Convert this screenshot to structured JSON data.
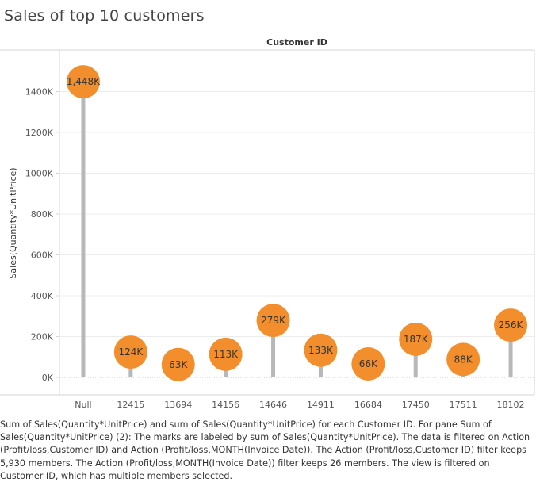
{
  "title": "Sales of top 10 customers",
  "chart_data": {
    "type": "lollipop",
    "column_header": "Customer ID",
    "ylabel": "Sales(Quantity*UnitPrice)",
    "categories": [
      "Null",
      "12415",
      "13694",
      "14156",
      "14646",
      "14911",
      "16684",
      "17450",
      "17511",
      "18102"
    ],
    "values": [
      1448,
      124,
      63,
      113,
      279,
      133,
      66,
      187,
      88,
      256
    ],
    "value_labels": [
      "1,448K",
      "124K",
      "63K",
      "113K",
      "279K",
      "133K",
      "66K",
      "187K",
      "88K",
      "256K"
    ],
    "yticks": [
      0,
      200,
      400,
      600,
      800,
      1000,
      1200,
      1400
    ],
    "ytick_labels": [
      "0K",
      "200K",
      "400K",
      "600K",
      "800K",
      "1000K",
      "1200K",
      "1400K"
    ],
    "ylim": [
      0,
      1560
    ],
    "grid": true,
    "colors": {
      "circle": "#f28e2b",
      "stem": "#b8b8b8",
      "grid": "#ececec"
    }
  },
  "caption": "Sum of Sales(Quantity*UnitPrice) and sum of Sales(Quantity*UnitPrice) for each Customer ID.  For pane Sum of Sales(Quantity*UnitPrice) (2):  The marks are labeled by sum of Sales(Quantity*UnitPrice). The data is filtered on Action (Profit/loss,Customer ID) and Action (Profit/loss,MONTH(Invoice Date)). The Action (Profit/loss,Customer ID) filter keeps 5,930 members. The Action (Profit/loss,MONTH(Invoice Date)) filter keeps 26 members. The view is filtered on Customer ID, which has multiple members selected."
}
